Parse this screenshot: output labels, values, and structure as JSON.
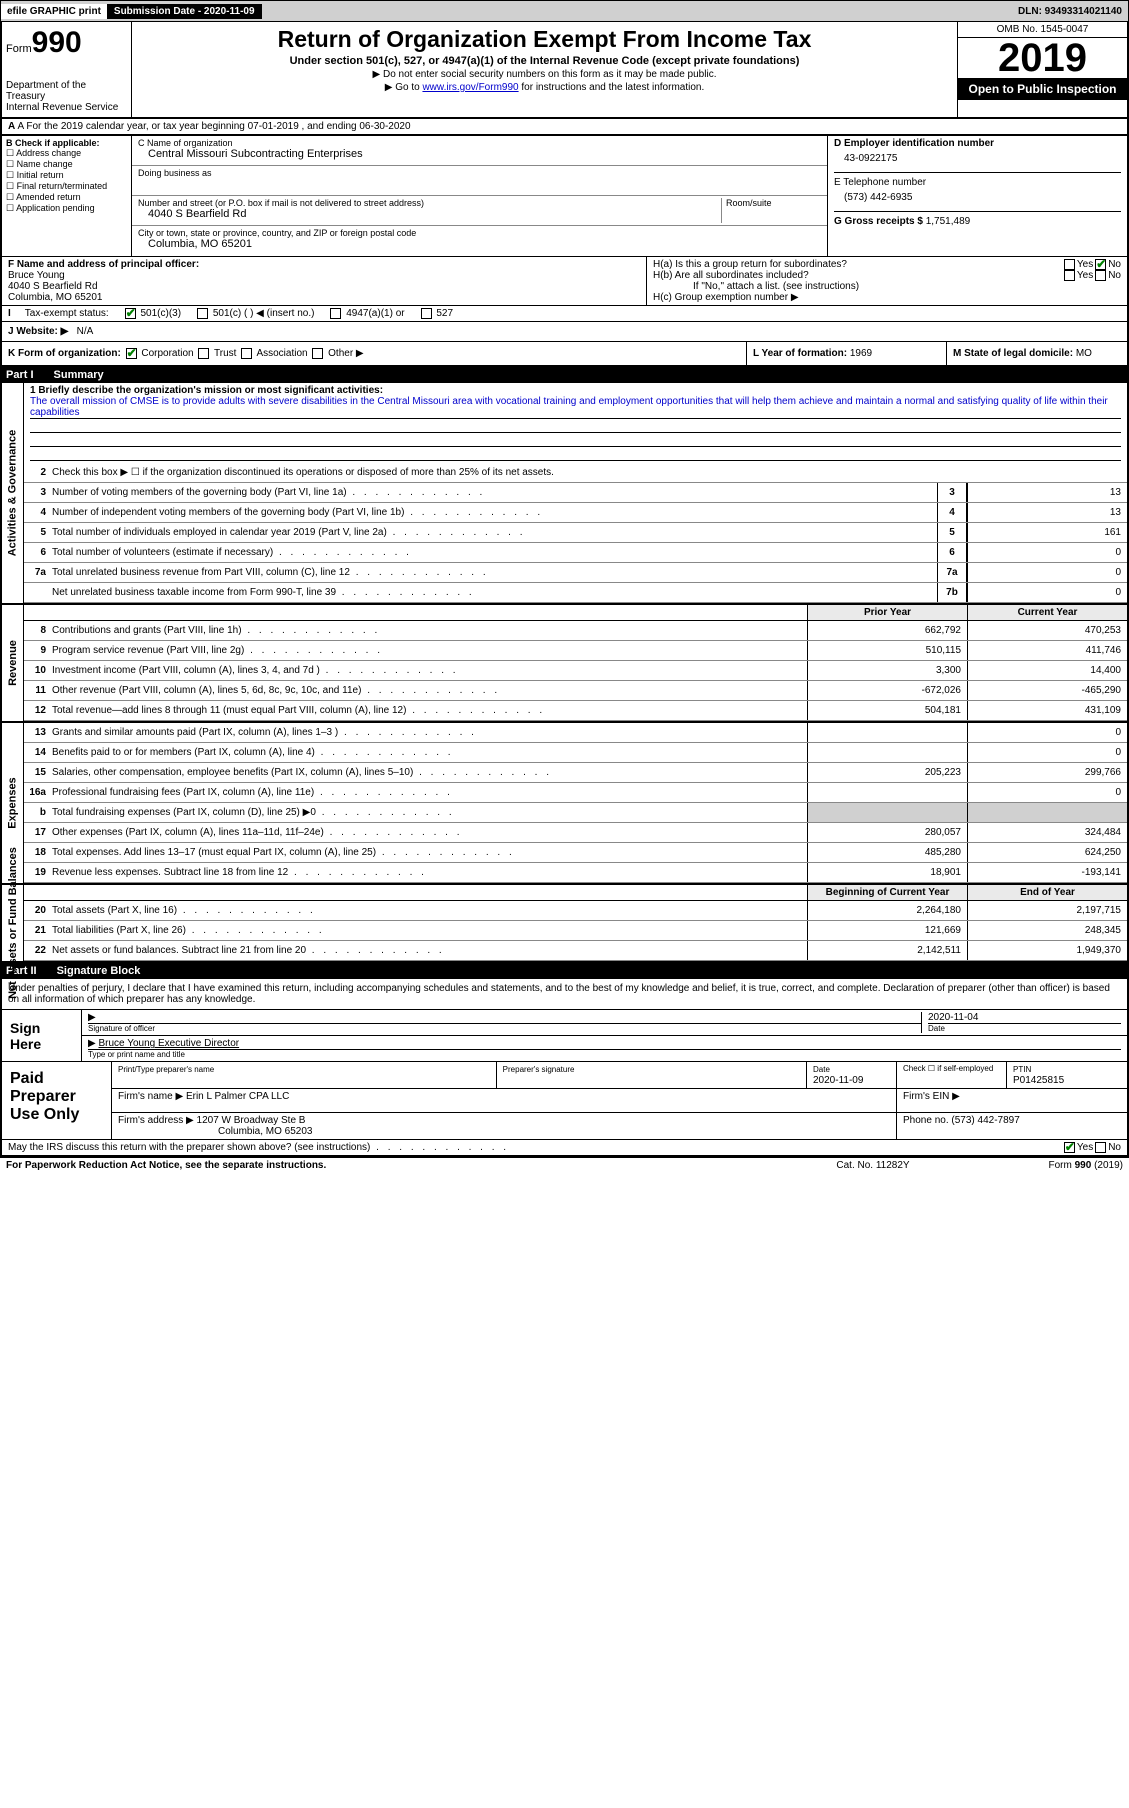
{
  "header_bar": {
    "efile": "efile GRAPHIC print",
    "submission_label": "Submission Date - 2020-11-09",
    "dln": "DLN: 93493314021140"
  },
  "form_header": {
    "form_label": "Form",
    "form_number": "990",
    "dept1": "Department of the Treasury",
    "dept2": "Internal Revenue Service",
    "title": "Return of Organization Exempt From Income Tax",
    "subtitle": "Under section 501(c), 527, or 4947(a)(1) of the Internal Revenue Code (except private foundations)",
    "instr1": "Do not enter social security numbers on this form as it may be made public.",
    "instr2_pre": "Go to ",
    "instr2_link": "www.irs.gov/Form990",
    "instr2_post": " for instructions and the latest information.",
    "omb": "OMB No. 1545-0047",
    "year": "2019",
    "inspection": "Open to Public Inspection"
  },
  "row_a": "A For the 2019 calendar year, or tax year beginning 07-01-2019    , and ending 06-30-2020",
  "section_b": {
    "title": "B Check if applicable:",
    "items": [
      "Address change",
      "Name change",
      "Initial return",
      "Final return/terminated",
      "Amended return",
      "Application pending"
    ]
  },
  "section_c": {
    "name_label": "C Name of organization",
    "name": "Central Missouri Subcontracting Enterprises",
    "dba_label": "Doing business as",
    "dba": "",
    "addr_label": "Number and street (or P.O. box if mail is not delivered to street address)",
    "room_label": "Room/suite",
    "addr": "4040 S Bearfield Rd",
    "city_label": "City or town, state or province, country, and ZIP or foreign postal code",
    "city": "Columbia, MO  65201"
  },
  "section_d": {
    "label": "D Employer identification number",
    "ein": "43-0922175",
    "phone_label": "E Telephone number",
    "phone": "(573) 442-6935",
    "gross_label": "G Gross receipts $",
    "gross": "1,751,489"
  },
  "section_f": {
    "label": "F  Name and address of principal officer:",
    "name": "Bruce Young",
    "addr1": "4040 S Bearfield Rd",
    "addr2": "Columbia, MO  65201"
  },
  "section_h": {
    "ha": "H(a)  Is this a group return for subordinates?",
    "hb": "H(b)  Are all subordinates included?",
    "hb_note": "If \"No,\" attach a list. (see instructions)",
    "hc": "H(c)  Group exemption number ▶",
    "yes": "Yes",
    "no": "No"
  },
  "tax_status": {
    "label": "Tax-exempt status:",
    "opt1": "501(c)(3)",
    "opt2": "501(c) (   ) ◀ (insert no.)",
    "opt3": "4947(a)(1) or",
    "opt4": "527"
  },
  "row_j": {
    "label": "J   Website: ▶",
    "value": "N/A"
  },
  "row_k": {
    "label": "K Form of organization:",
    "corp": "Corporation",
    "trust": "Trust",
    "assoc": "Association",
    "other": "Other ▶"
  },
  "row_l": {
    "label": "L Year of formation:",
    "value": "1969"
  },
  "row_m": {
    "label": "M State of legal domicile:",
    "value": "MO"
  },
  "part1": {
    "num": "Part I",
    "title": "Summary"
  },
  "mission": {
    "label": "1  Briefly describe the organization's mission or most significant activities:",
    "text": "The overall mission of CMSE is to provide adults with severe disabilities in the Central Missouri area with vocational training and employment opportunities that will help them achieve and maintain a normal and satisfying quality of life within their capabilities"
  },
  "line2": "Check this box ▶ ☐ if the organization discontinued its operations or disposed of more than 25% of its net assets.",
  "governance_lines": [
    {
      "n": "3",
      "d": "Number of voting members of the governing body (Part VI, line 1a)",
      "b": "3",
      "v": "13"
    },
    {
      "n": "4",
      "d": "Number of independent voting members of the governing body (Part VI, line 1b)",
      "b": "4",
      "v": "13"
    },
    {
      "n": "5",
      "d": "Total number of individuals employed in calendar year 2019 (Part V, line 2a)",
      "b": "5",
      "v": "161"
    },
    {
      "n": "6",
      "d": "Total number of volunteers (estimate if necessary)",
      "b": "6",
      "v": "0"
    },
    {
      "n": "7a",
      "d": "Total unrelated business revenue from Part VIII, column (C), line 12",
      "b": "7a",
      "v": "0"
    },
    {
      "n": "",
      "d": "Net unrelated business taxable income from Form 990-T, line 39",
      "b": "7b",
      "v": "0"
    }
  ],
  "col_headers": {
    "prior": "Prior Year",
    "current": "Current Year"
  },
  "revenue_lines": [
    {
      "n": "8",
      "d": "Contributions and grants (Part VIII, line 1h)",
      "p": "662,792",
      "c": "470,253"
    },
    {
      "n": "9",
      "d": "Program service revenue (Part VIII, line 2g)",
      "p": "510,115",
      "c": "411,746"
    },
    {
      "n": "10",
      "d": "Investment income (Part VIII, column (A), lines 3, 4, and 7d )",
      "p": "3,300",
      "c": "14,400"
    },
    {
      "n": "11",
      "d": "Other revenue (Part VIII, column (A), lines 5, 6d, 8c, 9c, 10c, and 11e)",
      "p": "-672,026",
      "c": "-465,290"
    },
    {
      "n": "12",
      "d": "Total revenue—add lines 8 through 11 (must equal Part VIII, column (A), line 12)",
      "p": "504,181",
      "c": "431,109"
    }
  ],
  "expense_lines": [
    {
      "n": "13",
      "d": "Grants and similar amounts paid (Part IX, column (A), lines 1–3 )",
      "p": "",
      "c": "0"
    },
    {
      "n": "14",
      "d": "Benefits paid to or for members (Part IX, column (A), line 4)",
      "p": "",
      "c": "0"
    },
    {
      "n": "15",
      "d": "Salaries, other compensation, employee benefits (Part IX, column (A), lines 5–10)",
      "p": "205,223",
      "c": "299,766"
    },
    {
      "n": "16a",
      "d": "Professional fundraising fees (Part IX, column (A), line 11e)",
      "p": "",
      "c": "0"
    },
    {
      "n": "b",
      "d": "Total fundraising expenses (Part IX, column (D), line 25) ▶0",
      "p": "GRAY",
      "c": "GRAY"
    },
    {
      "n": "17",
      "d": "Other expenses (Part IX, column (A), lines 11a–11d, 11f–24e)",
      "p": "280,057",
      "c": "324,484"
    },
    {
      "n": "18",
      "d": "Total expenses. Add lines 13–17 (must equal Part IX, column (A), line 25)",
      "p": "485,280",
      "c": "624,250"
    },
    {
      "n": "19",
      "d": "Revenue less expenses. Subtract line 18 from line 12",
      "p": "18,901",
      "c": "-193,141"
    }
  ],
  "balance_headers": {
    "begin": "Beginning of Current Year",
    "end": "End of Year"
  },
  "balance_lines": [
    {
      "n": "20",
      "d": "Total assets (Part X, line 16)",
      "p": "2,264,180",
      "c": "2,197,715"
    },
    {
      "n": "21",
      "d": "Total liabilities (Part X, line 26)",
      "p": "121,669",
      "c": "248,345"
    },
    {
      "n": "22",
      "d": "Net assets or fund balances. Subtract line 21 from line 20",
      "p": "2,142,511",
      "c": "1,949,370"
    }
  ],
  "side_labels": {
    "gov": "Activities & Governance",
    "rev": "Revenue",
    "exp": "Expenses",
    "bal": "Net Assets or Fund Balances"
  },
  "part2": {
    "num": "Part II",
    "title": "Signature Block"
  },
  "sig": {
    "decl": "Under penalties of perjury, I declare that I have examined this return, including accompanying schedules and statements, and to the best of my knowledge and belief, it is true, correct, and complete. Declaration of preparer (other than officer) is based on all information of which preparer has any knowledge.",
    "sign_here": "Sign Here",
    "sig_officer_label": "Signature of officer",
    "date_label": "Date",
    "date": "2020-11-04",
    "name_title": "Bruce Young Executive Director",
    "name_title_label": "Type or print name and title"
  },
  "prep": {
    "title": "Paid Preparer Use Only",
    "h1": "Print/Type preparer's name",
    "h2": "Preparer's signature",
    "h3": "Date",
    "h3v": "2020-11-09",
    "h4": "Check ☐ if self-employed",
    "h5": "PTIN",
    "h5v": "P01425815",
    "firm_label": "Firm's name    ▶",
    "firm": "Erin L Palmer CPA LLC",
    "ein_label": "Firm's EIN ▶",
    "addr_label": "Firm's address ▶",
    "addr1": "1207 W Broadway Ste B",
    "addr2": "Columbia, MO  65203",
    "phone_label": "Phone no.",
    "phone": "(573) 442-7897",
    "discuss": "May the IRS discuss this return with the preparer shown above? (see instructions)"
  },
  "footer": {
    "left": "For Paperwork Reduction Act Notice, see the separate instructions.",
    "mid": "Cat. No. 11282Y",
    "right": "Form 990 (2019)"
  }
}
